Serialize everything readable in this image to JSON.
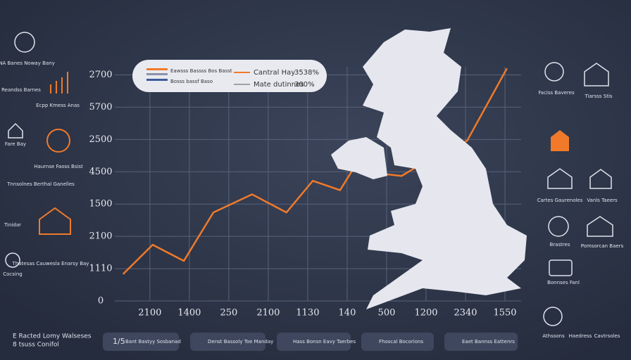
{
  "chart_data": {
    "type": "line",
    "xlim": [
      -0.89,
      9.41
    ],
    "ylim": [
      0,
      7.25
    ],
    "xticks": [
      {
        "value": 0,
        "label": "2100"
      },
      {
        "value": 1,
        "label": "1400"
      },
      {
        "value": 2,
        "label": "250"
      },
      {
        "value": 3,
        "label": "2100"
      },
      {
        "value": 4,
        "label": "1130"
      },
      {
        "value": 5,
        "label": "140"
      },
      {
        "value": 6,
        "label": "500"
      },
      {
        "value": 7,
        "label": "1200"
      },
      {
        "value": 8,
        "label": "2340"
      },
      {
        "value": 9,
        "label": "1550"
      }
    ],
    "yticks": [
      {
        "value": 0,
        "label": "0"
      },
      {
        "value": 1,
        "label": "1110"
      },
      {
        "value": 2,
        "label": "2100"
      },
      {
        "value": 3,
        "label": "1500"
      },
      {
        "value": 4,
        "label": "4500"
      },
      {
        "value": 5,
        "label": "2500"
      },
      {
        "value": 6,
        "label": "5700"
      },
      {
        "value": 7,
        "label": "2700"
      }
    ],
    "grid": true,
    "legend": [
      {
        "name": "Cantral Hay",
        "value_label": "3538%"
      },
      {
        "name": "Mate dutinnes",
        "value_label": "300%"
      }
    ],
    "legend_box_text": [
      "Eawsss Bassss Bos Basst",
      "Bosss bassf Baso"
    ],
    "series": [
      {
        "name": "Cantral Hay",
        "color": "#f07a2a",
        "x": [
          -0.68,
          0.07,
          0.86,
          1.61,
          2.59,
          3.46,
          4.13,
          4.82,
          5.13,
          6.38,
          6.73,
          8.04,
          9.05
        ],
        "values": [
          0.83,
          1.74,
          1.24,
          2.74,
          3.3,
          2.74,
          3.72,
          3.43,
          4.04,
          3.87,
          4.13,
          4.96,
          7.2
        ]
      }
    ]
  },
  "left_panel": [
    "NA Banes Noway Bany",
    "Reandss Barnes",
    "Ecpp Kmess Anas",
    "Fare Bay",
    "Haurnse Faoss Bsist",
    "Tnnsolnes Berthal Ganelles",
    "Tinidar",
    "Thatesas Cauwesla Enarsy Bay",
    "Cocsing"
  ],
  "right_panel": [
    "Faciss Baveres",
    "Tiarsss Stis",
    "Cartes Gaurenoles",
    "Vanls Taeers",
    "Brastres",
    "Pomsorcan Baers",
    "Bonnses Fanl",
    "Athssons",
    "Haedress",
    "Cavtrsoles"
  ],
  "bottom_bar": {
    "page_indicator": "1/5",
    "items": [
      "Bant Bastyy Sosbanad",
      "Denst Bassoly Toe Manday",
      "Hass Bonsn Eavy Taerbes",
      "Fhoscal Bocorions",
      "Eaet Bannss Eattenrs"
    ]
  },
  "footer": [
    "E Racted Lomy Walseses",
    "8 tsuss Conifol"
  ]
}
